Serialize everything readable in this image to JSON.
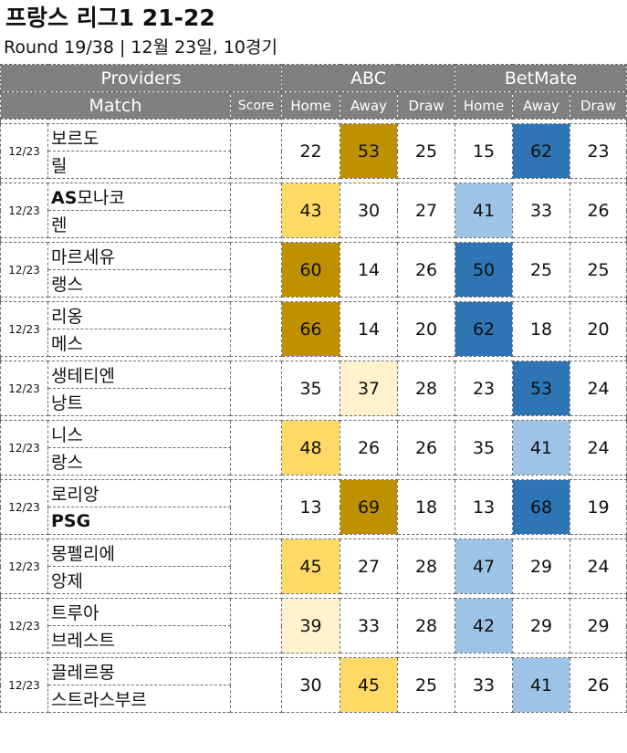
{
  "title": "프랑스 리그1 21-22",
  "subtitle": "Round 19/38  | 12월 23일, 10경기",
  "header": {
    "providers": "Providers",
    "match": "Match",
    "score": "Score",
    "provider_names": [
      "ABC",
      "BetMate"
    ],
    "outcomes": [
      "Home",
      "Away",
      "Draw"
    ]
  },
  "colors": {
    "gold": "#bf9000",
    "yellow": "#ffd966",
    "cream": "#fff2cc",
    "blue": "#2e75b6",
    "light_blue": "#9dc3e6",
    "header_gray": "#808080"
  },
  "matches": [
    {
      "date": "12/23",
      "home": "보르도",
      "away": "릴",
      "home_bold": false,
      "away_bold": false,
      "abc": [
        22,
        53,
        25
      ],
      "abc_colors": [
        "",
        "gold",
        ""
      ],
      "bm": [
        15,
        62,
        23
      ],
      "bm_colors": [
        "",
        "blue",
        ""
      ]
    },
    {
      "date": "12/23",
      "home": "AS모나코",
      "away": "렌",
      "home_bold": false,
      "away_bold": false,
      "abc": [
        43,
        30,
        27
      ],
      "abc_colors": [
        "yellow",
        "",
        ""
      ],
      "bm": [
        41,
        33,
        26
      ],
      "bm_colors": [
        "light_blue",
        "",
        ""
      ]
    },
    {
      "date": "12/23",
      "home": "마르세유",
      "away": "랭스",
      "home_bold": false,
      "away_bold": false,
      "abc": [
        60,
        14,
        26
      ],
      "abc_colors": [
        "gold",
        "",
        ""
      ],
      "bm": [
        50,
        25,
        25
      ],
      "bm_colors": [
        "blue",
        "",
        ""
      ]
    },
    {
      "date": "12/23",
      "home": "리옹",
      "away": "메스",
      "home_bold": false,
      "away_bold": false,
      "abc": [
        66,
        14,
        20
      ],
      "abc_colors": [
        "gold",
        "",
        ""
      ],
      "bm": [
        62,
        18,
        20
      ],
      "bm_colors": [
        "blue",
        "",
        ""
      ]
    },
    {
      "date": "12/23",
      "home": "생테티엔",
      "away": "낭트",
      "home_bold": false,
      "away_bold": false,
      "abc": [
        35,
        37,
        28
      ],
      "abc_colors": [
        "",
        "cream",
        ""
      ],
      "bm": [
        23,
        53,
        24
      ],
      "bm_colors": [
        "",
        "blue",
        ""
      ]
    },
    {
      "date": "12/23",
      "home": "니스",
      "away": "랑스",
      "home_bold": false,
      "away_bold": false,
      "abc": [
        48,
        26,
        26
      ],
      "abc_colors": [
        "yellow",
        "",
        ""
      ],
      "bm": [
        35,
        41,
        24
      ],
      "bm_colors": [
        "",
        "light_blue",
        ""
      ]
    },
    {
      "date": "12/23",
      "home": "로리앙",
      "away": "PSG",
      "home_bold": false,
      "away_bold": true,
      "abc": [
        13,
        69,
        18
      ],
      "abc_colors": [
        "",
        "gold",
        ""
      ],
      "bm": [
        13,
        68,
        19
      ],
      "bm_colors": [
        "",
        "blue",
        ""
      ]
    },
    {
      "date": "12/23",
      "home": "몽펠리에",
      "away": "앙제",
      "home_bold": false,
      "away_bold": false,
      "abc": [
        45,
        27,
        28
      ],
      "abc_colors": [
        "yellow",
        "",
        ""
      ],
      "bm": [
        47,
        29,
        24
      ],
      "bm_colors": [
        "light_blue",
        "",
        ""
      ]
    },
    {
      "date": "12/23",
      "home": "트루아",
      "away": "브레스트",
      "home_bold": false,
      "away_bold": false,
      "abc": [
        39,
        33,
        28
      ],
      "abc_colors": [
        "cream",
        "",
        ""
      ],
      "bm": [
        42,
        29,
        29
      ],
      "bm_colors": [
        "light_blue",
        "",
        ""
      ]
    },
    {
      "date": "12/23",
      "home": "끌레르몽",
      "away": "스트라스부르",
      "home_bold": false,
      "away_bold": false,
      "abc": [
        30,
        45,
        25
      ],
      "abc_colors": [
        "",
        "yellow",
        ""
      ],
      "bm": [
        33,
        41,
        26
      ],
      "bm_colors": [
        "",
        "light_blue",
        ""
      ]
    }
  ]
}
